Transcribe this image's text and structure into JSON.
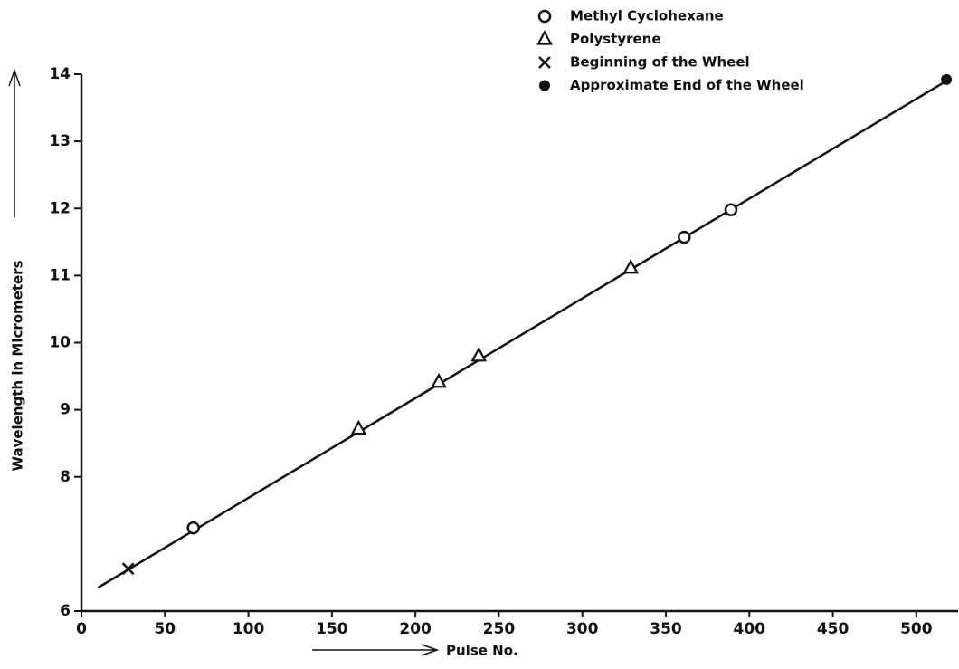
{
  "chart_data": {
    "type": "scatter",
    "x_label": "Pulse No.",
    "y_label": "Wavelength in Micrometers",
    "xlim": [
      0,
      525
    ],
    "ylim": [
      6,
      14
    ],
    "xticks": [
      0,
      50,
      100,
      150,
      200,
      250,
      300,
      350,
      400,
      450,
      500
    ],
    "yticks": [
      6,
      8,
      9,
      10,
      11,
      12,
      13,
      14
    ],
    "legend": "top-right",
    "series": [
      {
        "name": "Methyl Cyclohexane",
        "marker": "circle",
        "color": "#111111",
        "x": [
          67,
          361,
          389
        ],
        "values": [
          7.24,
          11.57,
          11.98
        ]
      },
      {
        "name": "Polystyrene",
        "marker": "triangle",
        "color": "#111111",
        "x": [
          166,
          214,
          238,
          329
        ],
        "values": [
          8.71,
          9.41,
          9.8,
          11.11
        ]
      },
      {
        "name": "Beginning of the Wheel",
        "marker": "x",
        "color": "#111111",
        "x": [
          28
        ],
        "values": [
          6.63
        ]
      },
      {
        "name": "Approximate End of the Wheel",
        "marker": "dot",
        "color": "#111111",
        "x": [
          518
        ],
        "values": [
          13.92
        ]
      }
    ],
    "fit": {
      "x": [
        10,
        516
      ],
      "y": [
        6.35,
        13.87
      ],
      "color": "#111111"
    }
  }
}
